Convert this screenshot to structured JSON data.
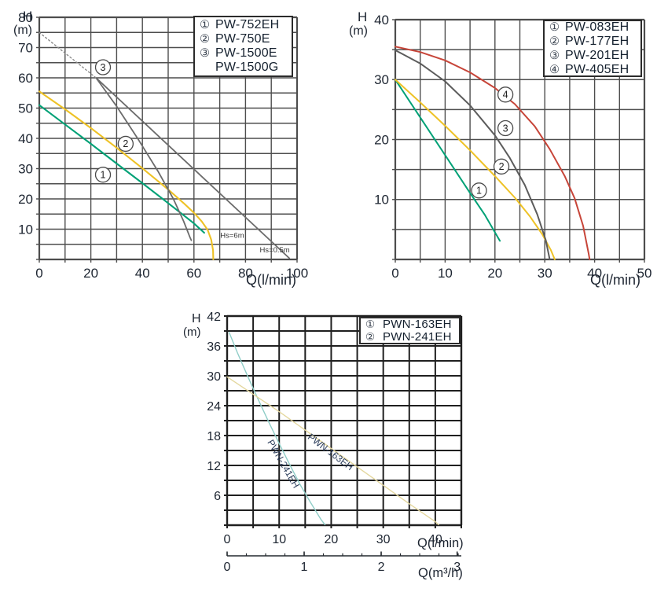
{
  "chart_data": [
    {
      "type": "line",
      "title": "",
      "ylabel_letter": "H",
      "ylabel_unit": "(m)",
      "xlabel": "Q(l/min)",
      "xlim": [
        0,
        100
      ],
      "ylim": [
        0,
        80
      ],
      "x_grid_step": 10,
      "y_grid_step": 5,
      "x_ticks": [
        {
          "v": 0,
          "label": "0"
        },
        {
          "v": 20,
          "label": "20"
        },
        {
          "v": 40,
          "label": "40"
        },
        {
          "v": 60,
          "label": "60"
        },
        {
          "v": 80,
          "label": "80"
        },
        {
          "v": 100,
          "label": "100"
        }
      ],
      "y_ticks": [
        {
          "v": 10,
          "label": "10"
        },
        {
          "v": 20,
          "label": "20"
        },
        {
          "v": 30,
          "label": "30"
        },
        {
          "v": 40,
          "label": "40"
        },
        {
          "v": 50,
          "label": "50"
        },
        {
          "v": 60,
          "label": "60"
        },
        {
          "v": 70,
          "label": "70"
        },
        {
          "v": 80,
          "label": "80"
        }
      ],
      "legend": [
        {
          "sym": "①",
          "label": "PW-752EH"
        },
        {
          "sym": "②",
          "label": "PW-750E"
        },
        {
          "sym": "③",
          "label": "PW-1500E"
        },
        {
          "sym": "",
          "label": "PW-1500G"
        }
      ],
      "series": [
        {
          "name": "PW-752EH",
          "color": "#00a176",
          "width": 2.1,
          "points": [
            [
              0,
              51
            ],
            [
              10,
              44.6
            ],
            [
              20,
              38.2
            ],
            [
              30,
              31.7
            ],
            [
              40,
              25.2
            ],
            [
              50,
              18.6
            ],
            [
              56,
              14.6
            ],
            [
              60,
              11.9
            ],
            [
              64,
              8.8
            ]
          ]
        },
        {
          "name": "PW-750E",
          "color": "#eec226",
          "width": 2.1,
          "points": [
            [
              0,
              55.5
            ],
            [
              10,
              49.6
            ],
            [
              20,
              43.4
            ],
            [
              30,
              36.9
            ],
            [
              40,
              30.1
            ],
            [
              50,
              23.1
            ],
            [
              56,
              18.6
            ],
            [
              60,
              15.4
            ],
            [
              63,
              12.6
            ],
            [
              65.3,
              9.8
            ],
            [
              66.7,
              6.5
            ],
            [
              67.4,
              3
            ],
            [
              67.5,
              0
            ]
          ]
        },
        {
          "name": "PW-1500E / PW-1500G (steep branch)",
          "color": "#6b6b6b",
          "width": 1.8,
          "points": [
            [
              22,
              60
            ],
            [
              30,
              50.6
            ],
            [
              38,
              40.2
            ],
            [
              46,
              29.2
            ],
            [
              52,
              20
            ],
            [
              56,
              12.6
            ],
            [
              58.5,
              7.2
            ],
            [
              59,
              6.3
            ]
          ]
        },
        {
          "name": "PW-1500E / PW-1500G (long branch)",
          "color": "#6b6b6b",
          "width": 1.8,
          "points": [
            [
              22,
              60
            ],
            [
              97,
              0.4
            ]
          ]
        },
        {
          "name": "suction-lift dotted line",
          "color": "#8a8a8a",
          "width": 1.4,
          "dash": "2 3",
          "points": [
            [
              0,
              75
            ],
            [
              22,
              60
            ]
          ]
        }
      ],
      "markers": [
        {
          "n": "1",
          "x": 24.7,
          "y": 28
        },
        {
          "n": "2",
          "x": 33.5,
          "y": 38.2
        },
        {
          "n": "3",
          "x": 24.7,
          "y": 63.5
        }
      ],
      "annotations": [
        {
          "text": "Hs=6m",
          "x": 70.2,
          "y": 7.2,
          "size": 9.5,
          "color": "#333333",
          "anchor": "start"
        },
        {
          "text": "Hs=0.5m",
          "x": 85.5,
          "y": 2.3,
          "size": 9.5,
          "color": "#333333",
          "anchor": "start"
        }
      ]
    },
    {
      "type": "line",
      "title": "",
      "ylabel_letter": "H",
      "ylabel_unit": "(m)",
      "xlabel": "Q(l/min)",
      "xlim": [
        0,
        50
      ],
      "ylim": [
        0,
        40
      ],
      "x_grid_step": 5,
      "y_grid_step": 5,
      "x_ticks": [
        {
          "v": 0,
          "label": "0"
        },
        {
          "v": 10,
          "label": "10"
        },
        {
          "v": 20,
          "label": "20"
        },
        {
          "v": 30,
          "label": "30"
        },
        {
          "v": 40,
          "label": "40"
        },
        {
          "v": 50,
          "label": "50"
        }
      ],
      "y_ticks": [
        {
          "v": 10,
          "label": "10"
        },
        {
          "v": 20,
          "label": "20"
        },
        {
          "v": 30,
          "label": "30"
        },
        {
          "v": 40,
          "label": "40"
        }
      ],
      "legend": [
        {
          "sym": "①",
          "label": "PW-083EH"
        },
        {
          "sym": "②",
          "label": "PW-177EH"
        },
        {
          "sym": "③",
          "label": "PW-201EH"
        },
        {
          "sym": "④",
          "label": "PW-405EH"
        }
      ],
      "series": [
        {
          "name": "PW-083EH",
          "color": "#00a176",
          "width": 2,
          "points": [
            [
              0,
              30
            ],
            [
              5,
              23.7
            ],
            [
              10,
              17.4
            ],
            [
              15,
              11.1
            ],
            [
              18,
              7.4
            ],
            [
              21,
              3.1
            ]
          ]
        },
        {
          "name": "PW-177EH",
          "color": "#eec226",
          "width": 2,
          "points": [
            [
              0,
              30
            ],
            [
              5,
              26.2
            ],
            [
              10,
              22.3
            ],
            [
              15,
              18.2
            ],
            [
              20,
              13.9
            ],
            [
              24,
              10.3
            ],
            [
              27,
              7.2
            ],
            [
              29.5,
              4.2
            ],
            [
              31.2,
              1.6
            ],
            [
              32,
              0
            ]
          ]
        },
        {
          "name": "PW-201EH",
          "color": "#5c5c5c",
          "width": 2,
          "points": [
            [
              0,
              34.9
            ],
            [
              5,
              32.7
            ],
            [
              10,
              29.7
            ],
            [
              15,
              25.7
            ],
            [
              20,
              20.7
            ],
            [
              23,
              16.9
            ],
            [
              26,
              12.4
            ],
            [
              28.5,
              7.5
            ],
            [
              30.2,
              3.2
            ],
            [
              31,
              0
            ]
          ]
        },
        {
          "name": "PW-405EH",
          "color": "#c74539",
          "width": 2,
          "points": [
            [
              0,
              35.5
            ],
            [
              5,
              34.6
            ],
            [
              10,
              33.2
            ],
            [
              15,
              31.2
            ],
            [
              20,
              28.6
            ],
            [
              24,
              25.9
            ],
            [
              28,
              22.2
            ],
            [
              31,
              18.4
            ],
            [
              34,
              13.9
            ],
            [
              36,
              10.2
            ],
            [
              37.7,
              5.6
            ],
            [
              38.8,
              1
            ],
            [
              39,
              0
            ]
          ]
        }
      ],
      "markers": [
        {
          "n": "1",
          "x": 16.8,
          "y": 11.5
        },
        {
          "n": "2",
          "x": 21.3,
          "y": 15.5
        },
        {
          "n": "3",
          "x": 22.1,
          "y": 21.9
        },
        {
          "n": "4",
          "x": 22.1,
          "y": 27.5
        }
      ],
      "annotations": []
    },
    {
      "type": "line",
      "title": "",
      "ylabel_letter": "H",
      "ylabel_unit": "(m)",
      "xlabel": "Q(l/min)",
      "xlabel2": "Q(m³/h)",
      "xlim": [
        0,
        45
      ],
      "ylim": [
        0,
        42
      ],
      "x_grid_step": 5,
      "y_grid_step": 3,
      "x_ticks": [
        {
          "v": 0,
          "label": "0"
        },
        {
          "v": 10,
          "label": "10"
        },
        {
          "v": 20,
          "label": "20"
        },
        {
          "v": 30,
          "label": "30"
        },
        {
          "v": 40,
          "label": "40"
        }
      ],
      "y_ticks": [
        {
          "v": 6,
          "label": "6"
        },
        {
          "v": 12,
          "label": "12"
        },
        {
          "v": 18,
          "label": "18"
        },
        {
          "v": 24,
          "label": "24"
        },
        {
          "v": 30,
          "label": "30"
        },
        {
          "v": 36,
          "label": "36"
        },
        {
          "v": 42,
          "label": "42"
        }
      ],
      "legend": [
        {
          "sym": "①",
          "label": "PWN-163EH"
        },
        {
          "sym": "②",
          "label": "PWN-241EH"
        }
      ],
      "series": [
        {
          "name": "PWN-241EH",
          "color": "#8fcdc7",
          "width": 1.4,
          "points": [
            [
              0.4,
              38.7
            ],
            [
              2,
              34.6
            ],
            [
              4,
              29.8
            ],
            [
              6,
              25.2
            ],
            [
              8,
              20.7
            ],
            [
              10,
              16.4
            ],
            [
              12,
              12.2
            ],
            [
              14,
              8.2
            ],
            [
              16,
              4.6
            ],
            [
              18,
              1.2
            ],
            [
              18.8,
              0.1
            ]
          ]
        },
        {
          "name": "PWN-163EH",
          "color": "#e4d79e",
          "width": 1.4,
          "points": [
            [
              0,
              29.8
            ],
            [
              5,
              26.3
            ],
            [
              10,
              22.8
            ],
            [
              15,
              19.1
            ],
            [
              20,
              15.4
            ],
            [
              25,
              11.7
            ],
            [
              30,
              8
            ],
            [
              35,
              4.3
            ],
            [
              40,
              0.7
            ],
            [
              40.6,
              0.1
            ]
          ]
        }
      ],
      "markers": [],
      "annotations": [
        {
          "text": "PWN-241EH",
          "x": 10.3,
          "y": 12.0,
          "rot": 60,
          "size": 12,
          "color": "#2c3e5c",
          "anchor": "middle"
        },
        {
          "text": "PWN-163EH",
          "x": 19.5,
          "y": 14.2,
          "rot": 37,
          "size": 12,
          "color": "#2c3e5c",
          "anchor": "middle"
        }
      ],
      "axis2": {
        "label": "Q(m³/h)",
        "ticks": [
          {
            "v": 0,
            "label": "0"
          },
          {
            "v": 14.8,
            "label": "1"
          },
          {
            "v": 29.6,
            "label": "2"
          },
          {
            "v": 44.2,
            "label": "3"
          }
        ],
        "minor_step": 3.7
      }
    }
  ]
}
